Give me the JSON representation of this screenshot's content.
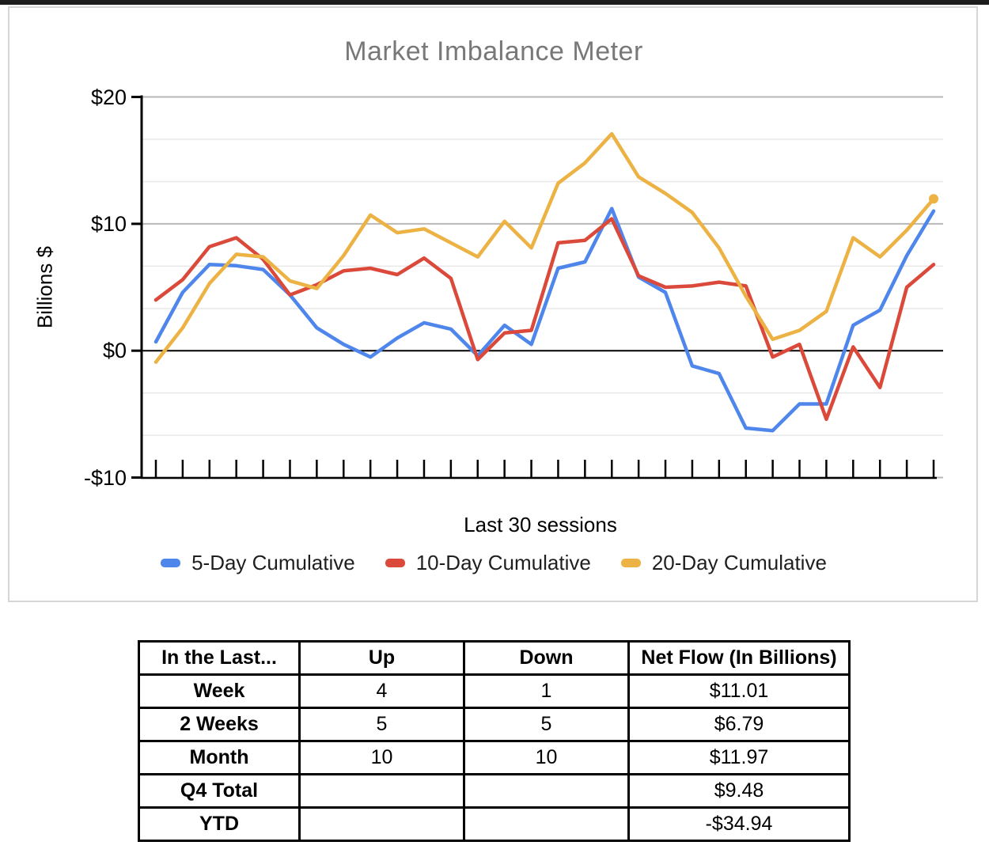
{
  "chart": {
    "title": "Market Imbalance Meter",
    "y_axis_title": "Billions $",
    "x_axis_title": "Last 30 sessions",
    "y_tick_labels": [
      "$20",
      "$10",
      "$0",
      "-$10"
    ]
  },
  "chart_data": {
    "type": "line",
    "title": "Market Imbalance Meter",
    "xlabel": "Last 30 sessions",
    "ylabel": "Billions $",
    "ylim": [
      -10,
      20
    ],
    "x_points": 30,
    "grid": "on",
    "legend_position": "bottom",
    "y_major_gridlines": [
      20,
      10,
      -10
    ],
    "y_zero_line": 0,
    "y_minor_gridlines": [
      16.67,
      13.33,
      6.67,
      3.33,
      -3.33,
      -6.67
    ],
    "axis_color": "#000000",
    "major_grid_color": "#b7b7b7",
    "minor_grid_color": "#e8e8e8",
    "series": [
      {
        "name": "5-Day Cumulative",
        "color": "#4e86ec",
        "end_marker": false,
        "values": [
          0.7,
          4.6,
          6.8,
          6.7,
          6.4,
          4.4,
          1.8,
          0.5,
          -0.5,
          1.0,
          2.2,
          1.7,
          -0.4,
          2.0,
          0.5,
          6.5,
          7.0,
          11.2,
          5.8,
          4.6,
          -1.2,
          -1.8,
          -6.1,
          -6.3,
          -4.2,
          -4.2,
          2.0,
          3.2,
          7.5,
          11.01
        ]
      },
      {
        "name": "10-Day Cumulative",
        "color": "#da493a",
        "end_marker": false,
        "values": [
          4.0,
          5.6,
          8.2,
          8.9,
          7.2,
          4.4,
          5.2,
          6.3,
          6.5,
          6.0,
          7.3,
          5.7,
          -0.7,
          1.4,
          1.6,
          8.5,
          8.7,
          10.4,
          5.9,
          5.0,
          5.1,
          5.4,
          5.1,
          -0.5,
          0.5,
          -5.4,
          0.3,
          -2.9,
          5.0,
          6.79
        ]
      },
      {
        "name": "20-Day Cumulative",
        "color": "#ecb244",
        "end_marker": true,
        "values": [
          -0.9,
          1.8,
          5.3,
          7.6,
          7.4,
          5.5,
          4.9,
          7.5,
          10.7,
          9.3,
          9.6,
          8.5,
          7.4,
          10.2,
          8.1,
          13.2,
          14.8,
          17.1,
          13.7,
          12.4,
          10.9,
          8.1,
          4.3,
          0.9,
          1.6,
          3.1,
          8.9,
          7.4,
          9.5,
          11.97
        ]
      }
    ]
  },
  "table": {
    "headers": [
      "In the Last...",
      "Up",
      "Down",
      "Net Flow (In Billions)"
    ],
    "rows": [
      [
        "Week",
        "4",
        "1",
        "$11.01"
      ],
      [
        "2 Weeks",
        "5",
        "5",
        "$6.79"
      ],
      [
        "Month",
        "10",
        "10",
        "$11.97"
      ],
      [
        "Q4 Total",
        "",
        "",
        "$9.48"
      ],
      [
        "YTD",
        "",
        "",
        "-$34.94"
      ]
    ]
  }
}
